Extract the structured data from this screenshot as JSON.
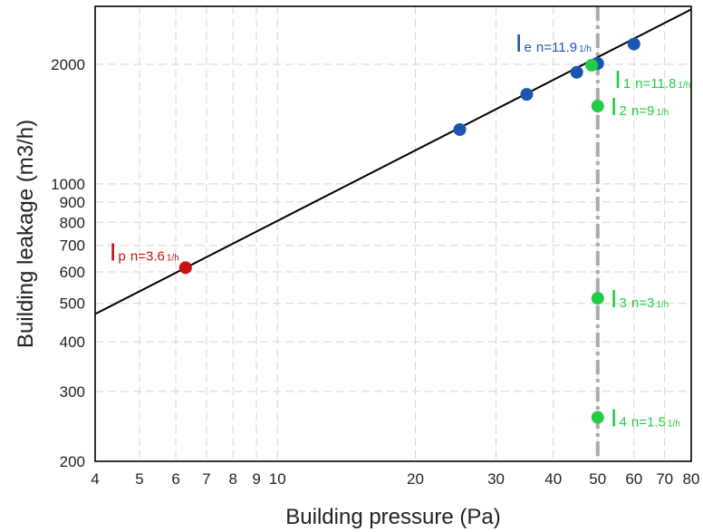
{
  "chart_data": {
    "type": "scatter",
    "title": "",
    "xlabel": "Building pressure (Pa)",
    "ylabel": "Building leakage (m3/h)",
    "x_scale": "log",
    "y_scale": "log",
    "xlim": [
      4,
      80
    ],
    "ylim": [
      200,
      2800
    ],
    "grid": true,
    "legend": "none",
    "x_ticks": [
      4,
      5,
      6,
      7,
      8,
      9,
      10,
      20,
      30,
      40,
      50,
      60,
      70,
      80
    ],
    "y_ticks": [
      200,
      300,
      400,
      500,
      600,
      700,
      800,
      900,
      1000,
      2000
    ],
    "x_tick_labels": [
      "4",
      "5",
      "6",
      "7",
      "8",
      "9",
      "10",
      "20",
      "30",
      "40",
      "50",
      "60",
      "70",
      "80"
    ],
    "y_tick_labels": [
      "200",
      "300",
      "400",
      "500",
      "600",
      "700",
      "800",
      "900",
      "1000",
      "2000"
    ],
    "reference_line": {
      "x": 50,
      "color": "#aaaaaa",
      "style": "dash-dot"
    },
    "fit_line": {
      "x": [
        4,
        80
      ],
      "y": [
        470,
        2750
      ],
      "color": "#000000"
    },
    "series": [
      {
        "color": "#1a56b0",
        "points": [
          {
            "x": 25,
            "y": 1370
          },
          {
            "x": 35,
            "y": 1680
          },
          {
            "x": 45,
            "y": 1910
          },
          {
            "x": 50,
            "y": 2010
          },
          {
            "x": 60,
            "y": 2250
          }
        ]
      },
      {
        "color": "#cc1111",
        "points": [
          {
            "x": 6.3,
            "y": 615
          }
        ]
      },
      {
        "color": "#22cc44",
        "points": [
          {
            "x": 48.5,
            "y": 1990
          },
          {
            "x": 50,
            "y": 1570
          },
          {
            "x": 50,
            "y": 515
          },
          {
            "x": 50,
            "y": 258
          }
        ]
      }
    ],
    "annotations": [
      {
        "symbol": "I",
        "sub": "e",
        "text": "n=11.9",
        "unit": "1/h",
        "color": "#1a56b0",
        "x": 50,
        "y": 2010
      },
      {
        "symbol": "I",
        "sub": "p",
        "text": "n=3.6",
        "unit": "1/h",
        "color": "#cc1111",
        "x": 6.3,
        "y": 615
      },
      {
        "symbol": "I",
        "sub": "1",
        "text": "n=11.8",
        "unit": "1/h",
        "color": "#22cc44",
        "x": 48.5,
        "y": 1990
      },
      {
        "symbol": "I",
        "sub": "2",
        "text": "n=9",
        "unit": "1/h",
        "color": "#22cc44",
        "x": 50,
        "y": 1570
      },
      {
        "symbol": "I",
        "sub": "3",
        "text": "n=3",
        "unit": "1/h",
        "color": "#22cc44",
        "x": 50,
        "y": 515
      },
      {
        "symbol": "I",
        "sub": "4",
        "text": "n=1.5",
        "unit": "1/h",
        "color": "#22cc44",
        "x": 50,
        "y": 258
      }
    ]
  }
}
